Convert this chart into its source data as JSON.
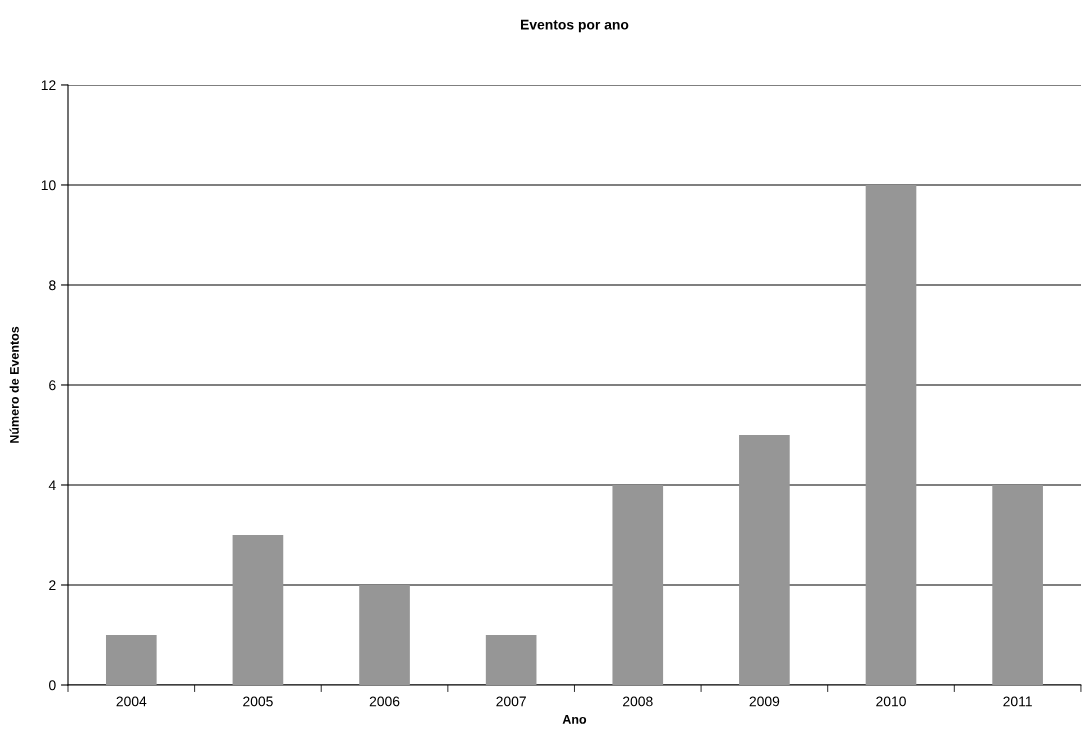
{
  "chart_data": {
    "type": "bar",
    "title": "Eventos por ano",
    "xlabel": "Ano",
    "ylabel": "Número de Eventos",
    "categories": [
      "2004",
      "2005",
      "2006",
      "2007",
      "2008",
      "2009",
      "2010",
      "2011"
    ],
    "values": [
      1,
      3,
      2,
      1,
      4,
      5,
      10,
      4
    ],
    "color": "#969696",
    "ylim": [
      0,
      12
    ],
    "yticks": [
      0,
      2,
      4,
      6,
      8,
      10,
      12
    ],
    "grid": "y",
    "legend": false
  }
}
